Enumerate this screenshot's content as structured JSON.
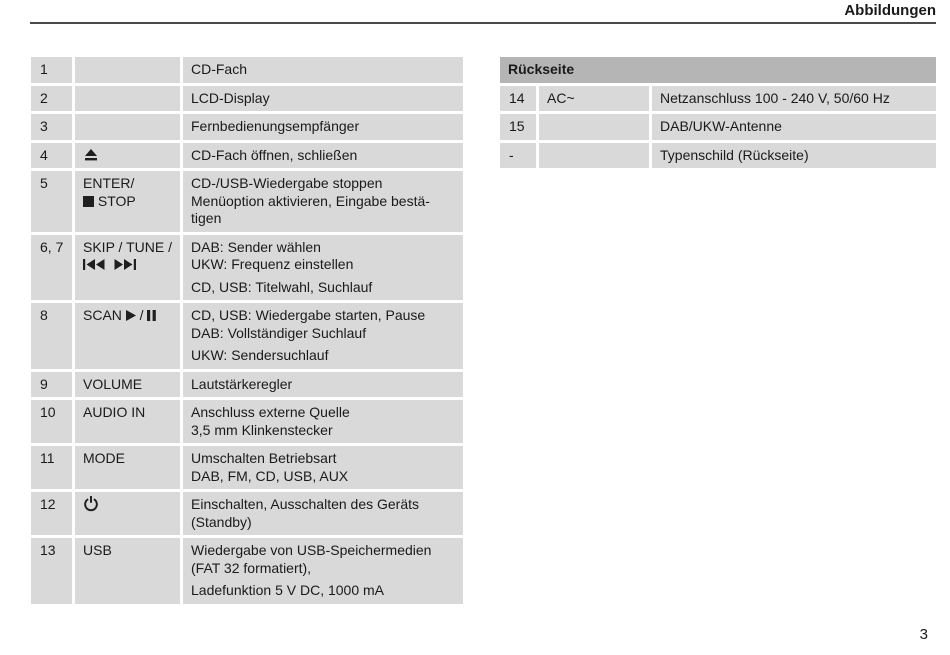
{
  "page": {
    "header_title": "Abbildungen",
    "page_number": "3"
  },
  "colors": {
    "cell_bg": "#d9d9d9",
    "header_bg": "#b5b5b5",
    "text": "#1a1a1a",
    "rule": "#4a4a4a"
  },
  "left_table": {
    "rows": [
      {
        "num": "1",
        "label": [],
        "desc": [
          "CD-Fach"
        ]
      },
      {
        "num": "2",
        "label": [],
        "desc": [
          "LCD-Display"
        ]
      },
      {
        "num": "3",
        "label": [],
        "desc": [
          "Fernbedienungsempfänger"
        ]
      },
      {
        "num": "4",
        "label": [
          {
            "icon": "eject-icon"
          }
        ],
        "desc": [
          "CD-Fach öffnen, schließen"
        ]
      },
      {
        "num": "5",
        "label": [
          {
            "text": "ENTER/"
          },
          {
            "br": true
          },
          {
            "icon": "stop-icon"
          },
          {
            "text": " STOP"
          }
        ],
        "desc": [
          "CD-/USB-Wiedergabe stoppen\nMenüoption aktivieren, Eingabe bestä-\ntigen"
        ]
      },
      {
        "num": "6, 7",
        "label": [
          {
            "text": "SKIP / TUNE /"
          },
          {
            "br": true
          },
          {
            "icon": "skip-back-icon"
          },
          {
            "icon": "skip-forward-icon"
          }
        ],
        "desc": [
          "DAB: Sender wählen\nUKW: Frequenz einstellen",
          "CD, USB: Titelwahl, Suchlauf"
        ]
      },
      {
        "num": "8",
        "label": [
          {
            "text": "SCAN "
          },
          {
            "icon": "play-icon"
          },
          {
            "text": " / "
          },
          {
            "icon": "pause-icon"
          }
        ],
        "desc": [
          "CD, USB: Wiedergabe starten, Pause\nDAB: Vollständiger Suchlauf",
          "UKW: Sendersuchlauf"
        ]
      },
      {
        "num": "9",
        "label": [
          {
            "text": "VOLUME"
          }
        ],
        "desc": [
          "Lautstärkeregler"
        ]
      },
      {
        "num": "10",
        "label": [
          {
            "text": "AUDIO IN"
          }
        ],
        "desc": [
          "Anschluss externe Quelle\n3,5 mm Klinkenstecker"
        ]
      },
      {
        "num": "11",
        "label": [
          {
            "text": "MODE"
          }
        ],
        "desc": [
          "Umschalten Betriebsart\nDAB, FM, CD, USB, AUX"
        ]
      },
      {
        "num": "12",
        "label": [
          {
            "icon": "power-icon"
          }
        ],
        "desc": [
          "Einschalten, Ausschalten des Geräts\n(Standby)"
        ]
      },
      {
        "num": "13",
        "label": [
          {
            "text": "USB"
          }
        ],
        "desc": [
          "Wiedergabe von USB-Speichermedien\n(FAT 32 formatiert),",
          "Ladefunktion 5 V DC, 1000 mA"
        ]
      }
    ]
  },
  "right_table": {
    "header": "Rückseite",
    "rows": [
      {
        "num": "14",
        "label": [
          {
            "text": "AC~"
          }
        ],
        "desc": [
          "Netzanschluss 100 - 240 V, 50/60 Hz"
        ]
      },
      {
        "num": "15",
        "label": [],
        "desc": [
          "DAB/UKW-Antenne"
        ]
      },
      {
        "num": "-",
        "label": [],
        "desc": [
          "Typenschild (Rückseite)"
        ]
      }
    ]
  }
}
